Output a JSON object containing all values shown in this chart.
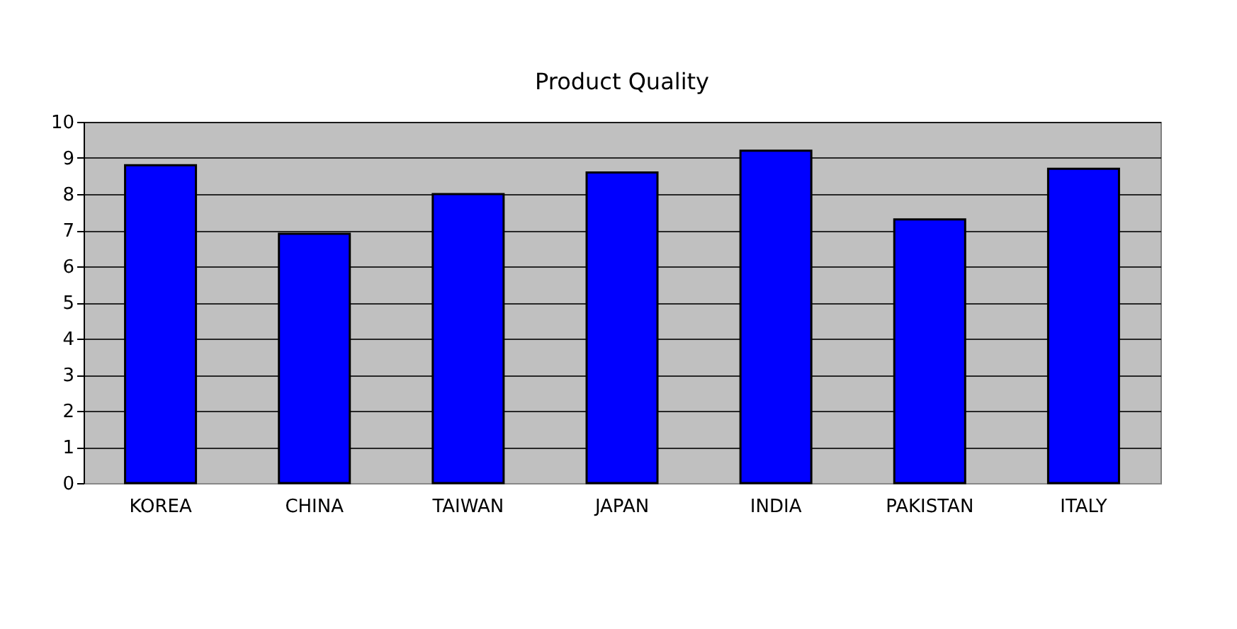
{
  "chart_data": {
    "type": "bar",
    "title": "Product Quality",
    "categories": [
      "KOREA",
      "CHINA",
      "TAIWAN",
      "JAPAN",
      "INDIA",
      "PAKISTAN",
      "ITALY"
    ],
    "values": [
      8.8,
      6.9,
      8.0,
      8.6,
      9.2,
      7.3,
      8.7
    ],
    "color": "#0000ff",
    "ylim": [
      0,
      10
    ],
    "yticks": [
      0,
      1,
      2,
      3,
      4,
      5,
      6,
      7,
      8,
      9,
      10
    ],
    "grid": "y"
  }
}
